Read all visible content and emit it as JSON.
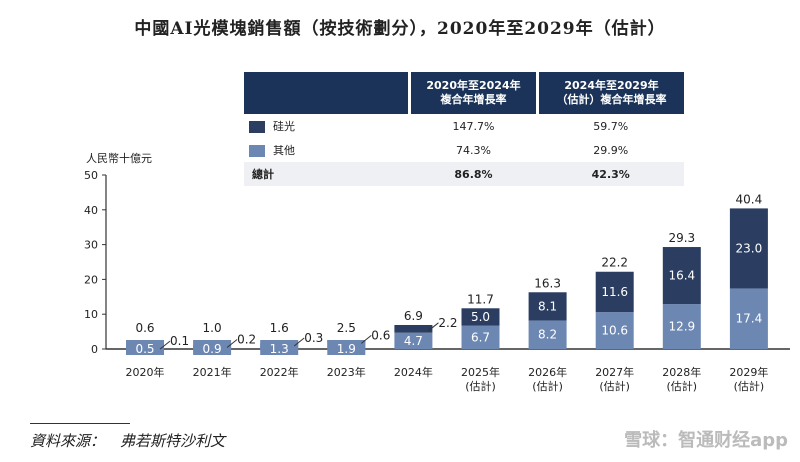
{
  "title": "中國AI光模塊銷售額（按技術劃分），2020年至2029年（估計）",
  "table": {
    "headers": [
      "",
      "2020年至2024年\n複合年增長率",
      "2024年至2029年\n（估計）複合年增長率"
    ],
    "header1_l1": "2020年至2024年",
    "header1_l2": "複合年增長率",
    "header2_l1": "2024年至2029年",
    "header2_l2": "（估計）複合年增長率",
    "rows": [
      {
        "label": "硅光",
        "c1": "147.7%",
        "c2": "59.7%"
      },
      {
        "label": "其他",
        "c1": "74.3%",
        "c2": "29.9%"
      },
      {
        "label": "總計",
        "c1": "86.8%",
        "c2": "42.3%"
      }
    ]
  },
  "source": "資料來源：　弗若斯特沙利文",
  "watermark": "雪球：智通财经app",
  "colors": {
    "silicon": "#2b3d60",
    "other": "#6d87b3"
  },
  "chart_data": {
    "type": "bar",
    "stacked": true,
    "ylabel": "人民幣十億元",
    "ylim": [
      0,
      50
    ],
    "yticks": [
      0,
      10,
      20,
      30,
      40,
      50
    ],
    "categories": [
      "2020年",
      "2021年",
      "2022年",
      "2023年",
      "2024年",
      "2025年\n(估計)",
      "2026年\n(估計)",
      "2027年\n(估計)",
      "2028年\n(估計)",
      "2029年\n(估計)"
    ],
    "series": [
      {
        "name": "其他",
        "values": [
          0.5,
          0.9,
          1.3,
          1.9,
          4.7,
          6.7,
          8.2,
          10.6,
          12.9,
          17.4
        ]
      },
      {
        "name": "硅光",
        "values": [
          0.1,
          0.2,
          0.3,
          0.6,
          2.2,
          5.0,
          8.1,
          11.6,
          16.4,
          23.0
        ]
      }
    ],
    "totals": [
      0.6,
      1.0,
      1.6,
      2.5,
      6.9,
      11.7,
      16.3,
      22.2,
      29.3,
      40.4
    ],
    "grid": false,
    "legend": "table-top"
  }
}
